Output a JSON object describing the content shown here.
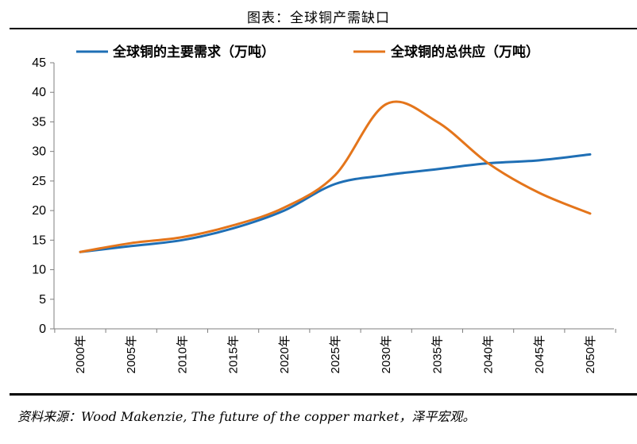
{
  "header": {
    "title": "图表：全球铜产需缺口"
  },
  "footer": {
    "source": "资料来源：Wood Makenzie, The future of the copper market，泽平宏观。"
  },
  "chart_data": {
    "type": "line",
    "x": [
      "2000年",
      "2005年",
      "2010年",
      "2015年",
      "2020年",
      "2025年",
      "2030年",
      "2035年",
      "2040年",
      "2045年",
      "2050年"
    ],
    "ylim": [
      0,
      45
    ],
    "yticks": [
      0,
      5,
      10,
      15,
      20,
      25,
      30,
      35,
      40,
      45
    ],
    "legend_position": "top",
    "grid": false,
    "series": [
      {
        "name": "全球铜的主要需求（万吨）",
        "color": "#1F6FB5",
        "values": [
          13.0,
          14.0,
          15.0,
          17.0,
          20.0,
          24.5,
          26.0,
          27.0,
          28.0,
          28.5,
          29.5
        ]
      },
      {
        "name": "全球铜的总供应（万吨）",
        "color": "#E4751B",
        "values": [
          13.0,
          14.5,
          15.5,
          17.5,
          20.5,
          26.0,
          38.0,
          35.0,
          28.0,
          23.0,
          19.5
        ]
      }
    ]
  }
}
